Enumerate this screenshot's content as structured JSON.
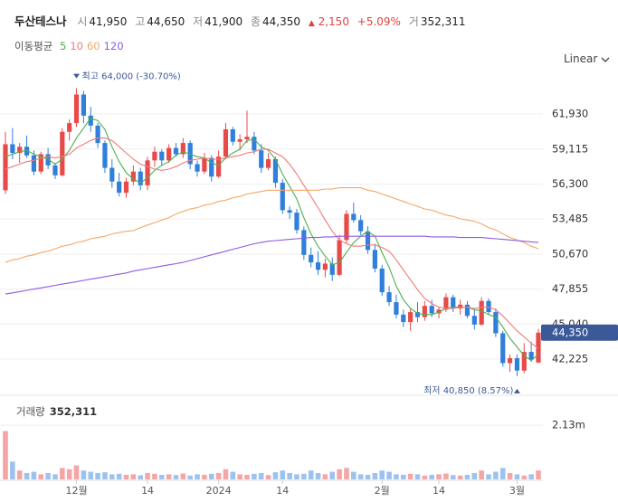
{
  "header": {
    "name": "두산테스나",
    "fields": [
      {
        "label": "시",
        "value": "41,950"
      },
      {
        "label": "고",
        "value": "44,650"
      },
      {
        "label": "저",
        "value": "41,900"
      },
      {
        "label": "종",
        "value": "44,350"
      }
    ],
    "change": {
      "arrow": "▲",
      "amount": "2,150",
      "percent": "+5.09%"
    },
    "volume": {
      "label": "거",
      "value": "352,311"
    }
  },
  "scale_menu": "Linear",
  "chart_data": [
    {
      "type": "candlestick",
      "legend_title": "이동평균",
      "categories": [
        null,
        null,
        null,
        null,
        null,
        null,
        null,
        null,
        null,
        null,
        "12월",
        null,
        null,
        null,
        null,
        null,
        null,
        null,
        null,
        null,
        "14",
        null,
        null,
        null,
        null,
        null,
        null,
        null,
        null,
        null,
        "2024",
        null,
        null,
        null,
        null,
        null,
        null,
        null,
        null,
        "14",
        null,
        null,
        null,
        null,
        null,
        null,
        null,
        null,
        null,
        null,
        null,
        null,
        null,
        "2월",
        null,
        null,
        null,
        null,
        null,
        null,
        null,
        "14",
        null,
        null,
        null,
        null,
        null,
        null,
        null,
        null,
        null,
        null,
        "3월",
        null,
        null,
        null
      ],
      "open": [
        55800,
        59500,
        58800,
        59300,
        58600,
        57300,
        58700,
        57800,
        57000,
        60500,
        61200,
        63500,
        61800,
        61000,
        59600,
        57600,
        56500,
        55600,
        56500,
        57300,
        56200,
        58200,
        58900,
        58200,
        59200,
        58700,
        59600,
        57900,
        57300,
        58400,
        56900,
        58500,
        60700,
        59700,
        59900,
        60100,
        59000,
        57600,
        58300,
        56400,
        54200,
        54000,
        52600,
        50600,
        50000,
        49400,
        49900,
        49000,
        51800,
        53900,
        53400,
        52500,
        51000,
        49500,
        47600,
        46800,
        45800,
        45200,
        46000,
        45600,
        46500,
        45900,
        46200,
        47200,
        46300,
        46600,
        45700,
        45000,
        46900,
        46000,
        44300,
        41900,
        42300,
        41300,
        42800,
        41950
      ],
      "high": [
        60500,
        60800,
        59600,
        60200,
        59000,
        58900,
        59200,
        58000,
        60800,
        61500,
        64000,
        63800,
        62500,
        61200,
        59800,
        58300,
        57200,
        56800,
        57800,
        57600,
        58500,
        59300,
        59100,
        59500,
        59600,
        60000,
        59800,
        58200,
        58800,
        58600,
        59000,
        61200,
        60900,
        60300,
        62200,
        60500,
        59500,
        58800,
        58500,
        56700,
        54500,
        54300,
        52900,
        51200,
        50900,
        50300,
        50400,
        52200,
        54200,
        54800,
        53800,
        52900,
        51500,
        49800,
        48100,
        47400,
        46200,
        46300,
        46800,
        46900,
        47000,
        46400,
        47500,
        47400,
        47000,
        46900,
        46200,
        47200,
        47100,
        46300,
        44500,
        42600,
        42600,
        43500,
        43600,
        44650
      ],
      "low": [
        55500,
        58300,
        58000,
        58400,
        57000,
        57100,
        57500,
        56700,
        56900,
        59800,
        60900,
        61200,
        60500,
        59200,
        57200,
        56000,
        55300,
        55200,
        56200,
        55800,
        55800,
        57700,
        57800,
        58000,
        58500,
        58400,
        57500,
        56900,
        57100,
        56500,
        56800,
        58300,
        59400,
        59000,
        59600,
        58700,
        57200,
        57400,
        56000,
        53900,
        53500,
        52300,
        50200,
        49600,
        49000,
        48800,
        48500,
        48900,
        51500,
        53200,
        52200,
        50700,
        49200,
        47300,
        46500,
        45500,
        44800,
        44500,
        45200,
        45300,
        45600,
        45500,
        46000,
        46000,
        45800,
        45500,
        44600,
        44900,
        45800,
        44000,
        41600,
        41200,
        40850,
        41100,
        42000,
        41900
      ],
      "close": [
        59500,
        58800,
        59300,
        58600,
        57300,
        58700,
        57800,
        57000,
        60500,
        61200,
        63500,
        61800,
        61000,
        59600,
        57600,
        56500,
        55600,
        56500,
        57300,
        56200,
        58200,
        58900,
        58200,
        59200,
        58700,
        59600,
        57900,
        57300,
        58400,
        56900,
        58500,
        60700,
        59700,
        59900,
        60100,
        59000,
        57600,
        58300,
        56400,
        54200,
        54000,
        52600,
        50600,
        50000,
        49400,
        49900,
        49000,
        51800,
        53900,
        53400,
        52500,
        51000,
        49500,
        47600,
        46800,
        45800,
        45200,
        46000,
        45600,
        46500,
        45900,
        46200,
        47200,
        46300,
        46600,
        45700,
        45000,
        46900,
        46000,
        44300,
        41900,
        42300,
        41300,
        42800,
        42200,
        44350
      ],
      "up_color": "#e84a4a",
      "down_color": "#2f7fdb",
      "series": [
        {
          "name": "5",
          "color": "#4cb050",
          "values": [
            58500,
            58700,
            58900,
            59000,
            58700,
            58500,
            58300,
            57900,
            58300,
            59000,
            60000,
            60800,
            61600,
            61400,
            60700,
            59300,
            58100,
            57200,
            56700,
            56400,
            56800,
            57400,
            57800,
            58100,
            58600,
            58900,
            58700,
            58500,
            58400,
            58000,
            57800,
            58400,
            58800,
            59100,
            59800,
            59900,
            59300,
            59000,
            58300,
            57100,
            56100,
            55100,
            53600,
            52300,
            51300,
            50500,
            49800,
            50000,
            50800,
            51600,
            52100,
            52500,
            52100,
            50800,
            49600,
            48100,
            47000,
            46300,
            45900,
            45800,
            45800,
            46000,
            46300,
            46400,
            46400,
            46400,
            46200,
            46100,
            45800,
            45600,
            44800,
            43900,
            43200,
            42500,
            42100,
            42600
          ]
        },
        {
          "name": "10",
          "color": "#f07a7a",
          "values": [
            57500,
            57700,
            57900,
            58100,
            58200,
            58400,
            58500,
            58400,
            58500,
            58700,
            59200,
            59500,
            59800,
            60000,
            60000,
            59800,
            59300,
            58800,
            58300,
            57900,
            57700,
            57500,
            57400,
            57500,
            57700,
            58000,
            58200,
            58300,
            58400,
            58300,
            58300,
            58400,
            58500,
            58600,
            58800,
            58900,
            59100,
            59100,
            58800,
            58500,
            57900,
            57100,
            56200,
            55300,
            54400,
            53400,
            52500,
            51800,
            51500,
            51300,
            51300,
            51400,
            51400,
            51200,
            50900,
            50200,
            49400,
            48600,
            47800,
            47100,
            46700,
            46400,
            46300,
            46300,
            46400,
            46400,
            46300,
            46400,
            46400,
            46200,
            45700,
            45100,
            44500,
            44000,
            43500,
            43100
          ]
        },
        {
          "name": "60",
          "color": "#f5a868",
          "values": [
            50000,
            50200,
            50300,
            50500,
            50600,
            50800,
            50900,
            51100,
            51300,
            51400,
            51600,
            51700,
            51900,
            52000,
            52100,
            52300,
            52400,
            52500,
            52550,
            52800,
            53000,
            53200,
            53400,
            53600,
            53900,
            54100,
            54300,
            54400,
            54600,
            54700,
            54900,
            55000,
            55200,
            55300,
            55500,
            55600,
            55700,
            55800,
            55800,
            55800,
            55800,
            55800,
            55800,
            55800,
            55800,
            55900,
            55900,
            56000,
            56000,
            56000,
            56000,
            55800,
            55700,
            55500,
            55300,
            55100,
            54900,
            54700,
            54500,
            54300,
            54200,
            54000,
            53800,
            53700,
            53500,
            53400,
            53300,
            53100,
            52800,
            52600,
            52300,
            52000,
            51800,
            51600,
            51300,
            51100
          ]
        },
        {
          "name": "120",
          "color": "#8e5ae6",
          "values": [
            47450,
            47550,
            47650,
            47750,
            47850,
            47950,
            48050,
            48150,
            48250,
            48350,
            48450,
            48550,
            48650,
            48750,
            48850,
            48950,
            49050,
            49150,
            49300,
            49400,
            49500,
            49600,
            49700,
            49800,
            49900,
            50000,
            50150,
            50300,
            50450,
            50600,
            50750,
            50900,
            51050,
            51200,
            51350,
            51500,
            51600,
            51700,
            51750,
            51800,
            51850,
            51900,
            51950,
            52000,
            52000,
            52050,
            52050,
            52100,
            52100,
            52100,
            52100,
            52100,
            52100,
            52100,
            52100,
            52100,
            52100,
            52100,
            52100,
            52100,
            52050,
            52050,
            52050,
            52050,
            52000,
            52000,
            52000,
            52000,
            51950,
            51900,
            51850,
            51800,
            51750,
            51700,
            51650,
            51600
          ]
        }
      ],
      "ylim": [
        39460,
        65280
      ],
      "yticks": [
        {
          "value": 61930,
          "label": "61,930"
        },
        {
          "value": 59115,
          "label": "59,115"
        },
        {
          "value": 56300,
          "label": "56,300"
        },
        {
          "value": 53485,
          "label": "53,485"
        },
        {
          "value": 50670,
          "label": "50,670"
        },
        {
          "value": 47855,
          "label": "47,855"
        },
        {
          "value": 45040,
          "label": "45,040"
        },
        {
          "value": 42225,
          "label": "42,225"
        }
      ],
      "grid": true,
      "last_label": "44,350",
      "annotations": {
        "max": "최고 64,000 (-30.70%)",
        "min": "최저 40,850 (8.57%)"
      }
    },
    {
      "type": "bar",
      "title": "거래량",
      "title_value": "352,311",
      "values": [
        1900000,
        700000,
        350000,
        250000,
        300000,
        200000,
        250000,
        200000,
        450000,
        400000,
        550000,
        350000,
        300000,
        250000,
        280000,
        200000,
        220000,
        180000,
        200000,
        160000,
        250000,
        220000,
        180000,
        200000,
        170000,
        230000,
        150000,
        200000,
        180000,
        220000,
        250000,
        400000,
        300000,
        200000,
        180000,
        220000,
        250000,
        170000,
        280000,
        350000,
        250000,
        200000,
        220000,
        350000,
        250000,
        200000,
        300000,
        400000,
        450000,
        300000,
        200000,
        180000,
        250000,
        350000,
        300000,
        200000,
        180000,
        220000,
        200000,
        150000,
        180000,
        200000,
        230000,
        170000,
        150000,
        180000,
        250000,
        350000,
        200000,
        300000,
        450000,
        250000,
        200000,
        150000,
        200000,
        352311
      ],
      "up_color": "#f4a6a6",
      "down_color": "#9cc3ef",
      "ylim": [
        0,
        3200000
      ],
      "yticks": [
        {
          "value": 2130000,
          "label": "2.13m"
        }
      ],
      "grid": true
    }
  ]
}
